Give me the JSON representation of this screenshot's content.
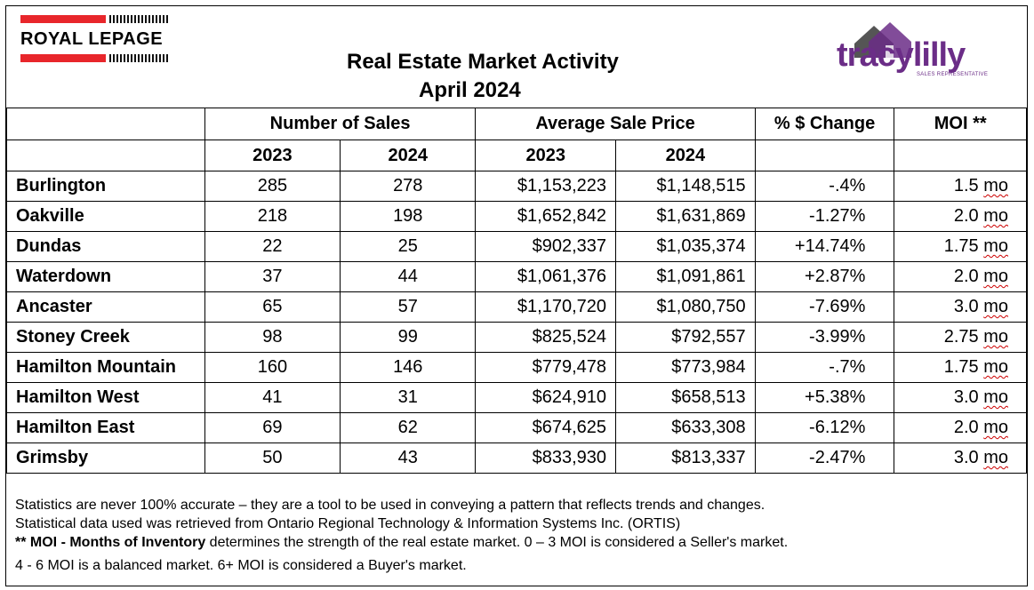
{
  "header": {
    "brand_left": "ROYAL LEPAGE",
    "title_line1": "Real Estate Market Activity",
    "title_line2": "April 2024",
    "brand_right": "tracylilly",
    "brand_right_sub": "SALES REPRESENTATIVE",
    "colors": {
      "royal_lepage_red": "#e8262b",
      "tracy_purple": "#6b2d87",
      "house_gray": "#666666"
    }
  },
  "table": {
    "group_headers": {
      "sales": "Number of Sales",
      "price": "Average Sale Price",
      "change": "% $ Change",
      "moi": "MOI **"
    },
    "years": {
      "sales_2023": "2023",
      "sales_2024": "2024",
      "price_2023": "2023",
      "price_2024": "2024"
    },
    "rows": [
      {
        "city": "Burlington",
        "sales_2023": "285",
        "sales_2024": "278",
        "price_2023": "$1,153,223",
        "price_2024": "$1,148,515",
        "change": "-.4%",
        "moi_value": "1.5",
        "moi_unit": "mo"
      },
      {
        "city": "Oakville",
        "sales_2023": "218",
        "sales_2024": "198",
        "price_2023": "$1,652,842",
        "price_2024": "$1,631,869",
        "change": "-1.27%",
        "moi_value": "2.0",
        "moi_unit": "mo"
      },
      {
        "city": "Dundas",
        "sales_2023": "22",
        "sales_2024": "25",
        "price_2023": "$902,337",
        "price_2024": "$1,035,374",
        "change": "+14.74%",
        "moi_value": "1.75",
        "moi_unit": "mo"
      },
      {
        "city": "Waterdown",
        "sales_2023": "37",
        "sales_2024": "44",
        "price_2023": "$1,061,376",
        "price_2024": "$1,091,861",
        "change": "+2.87%",
        "moi_value": "2.0",
        "moi_unit": "mo"
      },
      {
        "city": "Ancaster",
        "sales_2023": "65",
        "sales_2024": "57",
        "price_2023": "$1,170,720",
        "price_2024": "$1,080,750",
        "change": "-7.69%",
        "moi_value": "3.0",
        "moi_unit": "mo"
      },
      {
        "city": "Stoney Creek",
        "sales_2023": "98",
        "sales_2024": "99",
        "price_2023": "$825,524",
        "price_2024": "$792,557",
        "change": "-3.99%",
        "moi_value": "2.75",
        "moi_unit": "mo"
      },
      {
        "city": "Hamilton Mountain",
        "sales_2023": "160",
        "sales_2024": "146",
        "price_2023": "$779,478",
        "price_2024": "$773,984",
        "change": "-.7%",
        "moi_value": "1.75",
        "moi_unit": "mo"
      },
      {
        "city": "Hamilton West",
        "sales_2023": "41",
        "sales_2024": "31",
        "price_2023": "$624,910",
        "price_2024": "$658,513",
        "change": "+5.38%",
        "moi_value": "3.0",
        "moi_unit": "mo"
      },
      {
        "city": "Hamilton East",
        "sales_2023": "69",
        "sales_2024": "62",
        "price_2023": "$674,625",
        "price_2024": "$633,308",
        "change": "-6.12%",
        "moi_value": "2.0",
        "moi_unit": "mo"
      },
      {
        "city": "Grimsby",
        "sales_2023": "50",
        "sales_2024": "43",
        "price_2023": "$833,930",
        "price_2024": "$813,337",
        "change": "-2.47%",
        "moi_value": "3.0",
        "moi_unit": "mo"
      }
    ]
  },
  "footnote": {
    "line1": "Statistics are never 100% accurate – they are a tool to be used in conveying a pattern that reflects trends and changes.",
    "line2": "Statistical data used was retrieved from Ontario Regional Technology & Information Systems Inc. (ORTIS)",
    "line3_bold": "** MOI - Months of Inventory",
    "line3_rest": " determines the strength of the real estate market. 0 – 3 MOI is considered a Seller's market.",
    "line4": "4 - 6 MOI is a balanced market. 6+ MOI is considered a Buyer's market."
  }
}
